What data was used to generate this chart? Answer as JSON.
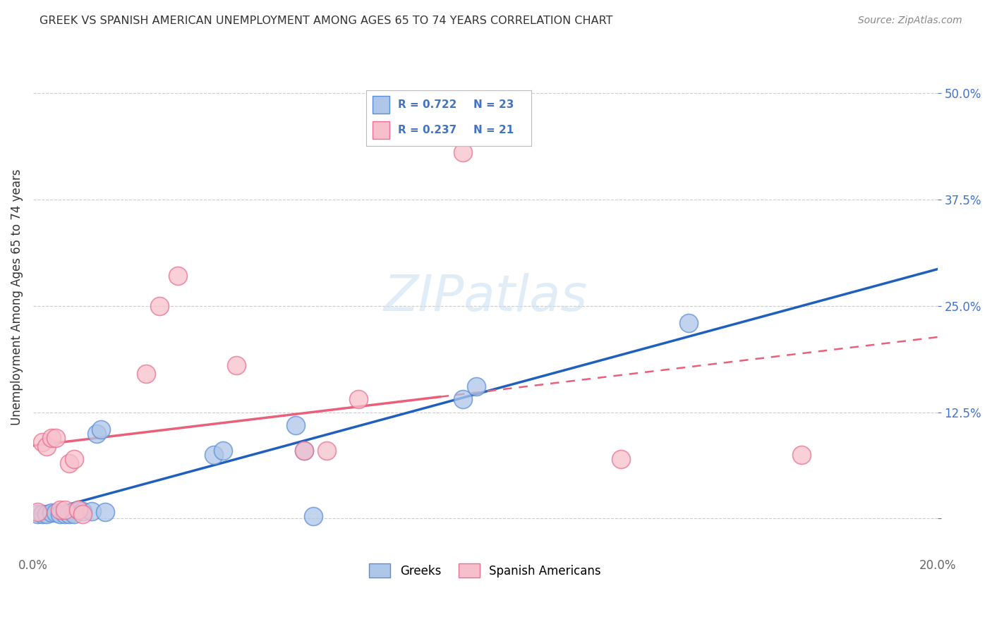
{
  "title": "GREEK VS SPANISH AMERICAN UNEMPLOYMENT AMONG AGES 65 TO 74 YEARS CORRELATION CHART",
  "source": "Source: ZipAtlas.com",
  "ylabel": "Unemployment Among Ages 65 to 74 years",
  "xlim": [
    0.0,
    0.2
  ],
  "ylim": [
    -0.04,
    0.56
  ],
  "xticks": [
    0.0,
    0.04,
    0.08,
    0.12,
    0.16,
    0.2
  ],
  "yticks": [
    0.0,
    0.125,
    0.25,
    0.375,
    0.5
  ],
  "greek_color": "#aec6e8",
  "greek_edge_color": "#5b8dd9",
  "spanish_color": "#f7bfcc",
  "spanish_edge_color": "#e87090",
  "greek_line_color": "#1f5fbd",
  "spanish_line_color": "#e8607a",
  "watermark_color": "#cce0f0",
  "legend_R_greek": "R = 0.722",
  "legend_N_greek": "N = 23",
  "legend_R_spanish": "R = 0.237",
  "legend_N_spanish": "N = 21",
  "label_color": "#4472c4",
  "greek_x": [
    0.001,
    0.002,
    0.003,
    0.004,
    0.005,
    0.006,
    0.007,
    0.008,
    0.009,
    0.01,
    0.011,
    0.013,
    0.014,
    0.015,
    0.016,
    0.04,
    0.042,
    0.058,
    0.06,
    0.062,
    0.095,
    0.098,
    0.145
  ],
  "greek_y": [
    0.005,
    0.005,
    0.005,
    0.007,
    0.007,
    0.005,
    0.005,
    0.005,
    0.005,
    0.01,
    0.009,
    0.009,
    0.1,
    0.105,
    0.008,
    0.075,
    0.08,
    0.11,
    0.08,
    0.003,
    0.14,
    0.155,
    0.23
  ],
  "spanish_x": [
    0.001,
    0.002,
    0.003,
    0.004,
    0.005,
    0.006,
    0.007,
    0.008,
    0.009,
    0.01,
    0.011,
    0.025,
    0.028,
    0.032,
    0.045,
    0.06,
    0.065,
    0.072,
    0.095,
    0.13,
    0.17
  ],
  "spanish_y": [
    0.008,
    0.09,
    0.085,
    0.095,
    0.095,
    0.01,
    0.01,
    0.065,
    0.07,
    0.01,
    0.005,
    0.17,
    0.25,
    0.285,
    0.18,
    0.08,
    0.08,
    0.14,
    0.43,
    0.07,
    0.075
  ]
}
